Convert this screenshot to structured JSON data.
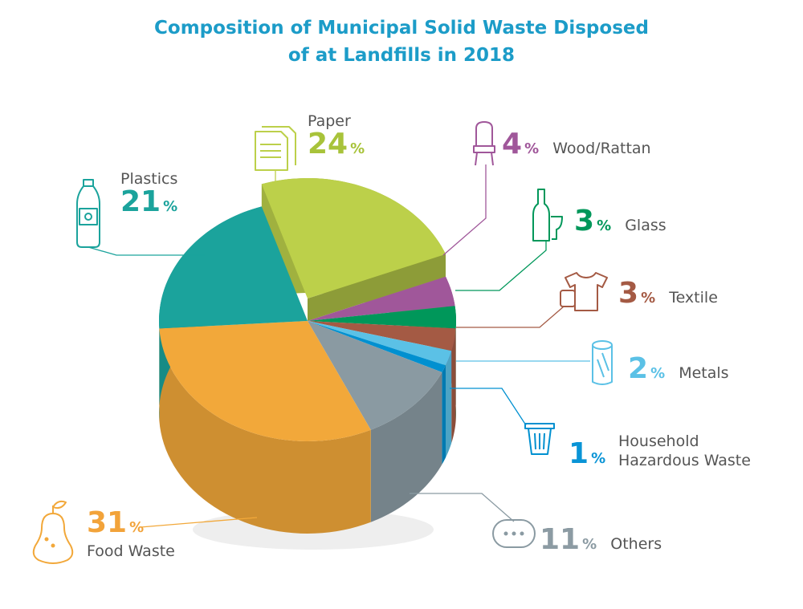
{
  "title_line1": "Composition of Municipal Solid Waste Disposed",
  "title_line2": "of at Landfills in 2018",
  "percent_sign": "%",
  "chart_data": {
    "type": "pie",
    "title": "Composition of Municipal Solid Waste Disposed of at Landfills in 2018",
    "unit": "%",
    "categories": [
      "Paper",
      "Wood/Rattan",
      "Glass",
      "Textile",
      "Metals",
      "Household Hazardous Waste",
      "Others",
      "Food Waste",
      "Plastics"
    ],
    "values": [
      24,
      4,
      3,
      3,
      2,
      1,
      11,
      31,
      21
    ],
    "colors": [
      "#bcd04a",
      "#a0579a",
      "#00975a",
      "#a45a44",
      "#5bc1e6",
      "#0090d0",
      "#8a9aa2",
      "#f2a83a",
      "#1ba39c"
    ],
    "legend": "none"
  },
  "labels": {
    "paper": {
      "name": "Paper",
      "value": "24"
    },
    "plastics": {
      "name": "Plastics",
      "value": "21"
    },
    "wood": {
      "name": "Wood/Rattan",
      "value": "4"
    },
    "glass": {
      "name": "Glass",
      "value": "3"
    },
    "textile": {
      "name": "Textile",
      "value": "3"
    },
    "metals": {
      "name": "Metals",
      "value": "2"
    },
    "hhw": {
      "name_line1": "Household",
      "name_line2": "Hazardous Waste",
      "value": "1"
    },
    "others": {
      "name": "Others",
      "value": "11"
    },
    "food": {
      "name": "Food Waste",
      "value": "31"
    }
  }
}
